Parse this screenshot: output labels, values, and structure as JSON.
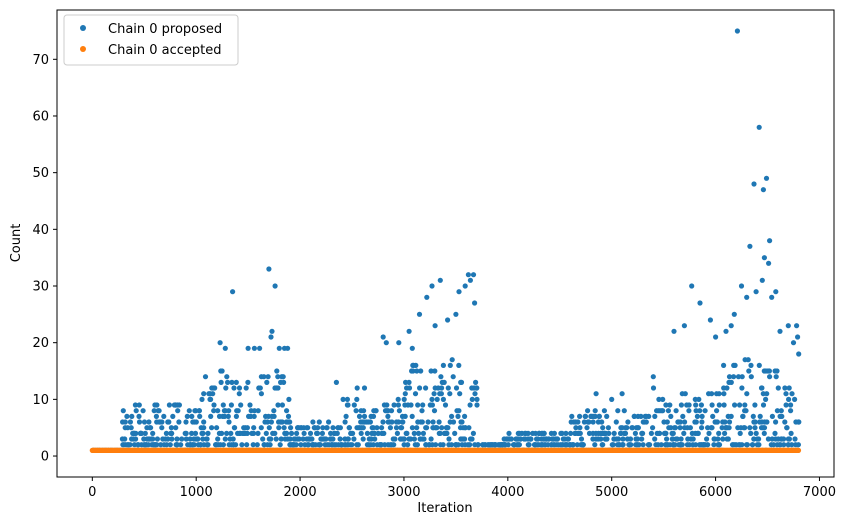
{
  "chart_data": {
    "type": "scatter",
    "title": "",
    "xlabel": "Iteration",
    "ylabel": "Count",
    "xlim": [
      -340,
      7140
    ],
    "ylim": [
      -3.7,
      78.7
    ],
    "xticks": [
      0,
      1000,
      2000,
      3000,
      4000,
      5000,
      6000,
      7000
    ],
    "yticks": [
      0,
      10,
      20,
      30,
      40,
      50,
      60,
      70
    ],
    "grid": false,
    "legend_position": "top-left",
    "colors": {
      "proposed": "#1f77b4",
      "accepted": "#ff7f0e"
    },
    "series": [
      {
        "name": "Chain 0 proposed",
        "color": "#1f77b4",
        "marker": "dot",
        "segments": [
          {
            "x_range": [
              0,
              290
            ],
            "y_max": 1
          },
          {
            "x_range": [
              290,
              1000
            ],
            "y_max": 9
          },
          {
            "x_range": [
              1000,
              1900
            ],
            "y_max": 15
          },
          {
            "x_range": [
              1900,
              2400
            ],
            "y_max": 6
          },
          {
            "x_range": [
              2400,
              3000
            ],
            "y_max": 10
          },
          {
            "x_range": [
              3000,
              3700
            ],
            "y_max": 17
          },
          {
            "x_range": [
              3700,
              3950
            ],
            "y_max": 2
          },
          {
            "x_range": [
              3950,
              4600
            ],
            "y_max": 4
          },
          {
            "x_range": [
              4600,
              5400
            ],
            "y_max": 8
          },
          {
            "x_range": [
              5400,
              6000
            ],
            "y_max": 12
          },
          {
            "x_range": [
              6000,
              6800
            ],
            "y_max": 17
          }
        ],
        "notable_points": [
          [
            290,
            3
          ],
          [
            1230,
            20
          ],
          [
            1280,
            19
          ],
          [
            1350,
            29
          ],
          [
            1500,
            19
          ],
          [
            1560,
            19
          ],
          [
            1610,
            19
          ],
          [
            1700,
            33
          ],
          [
            1720,
            21
          ],
          [
            1730,
            22
          ],
          [
            1760,
            30
          ],
          [
            1800,
            19
          ],
          [
            1850,
            19
          ],
          [
            1880,
            19
          ],
          [
            2350,
            13
          ],
          [
            2550,
            12
          ],
          [
            2620,
            12
          ],
          [
            2800,
            21
          ],
          [
            2830,
            20
          ],
          [
            2950,
            20
          ],
          [
            3050,
            22
          ],
          [
            3080,
            19
          ],
          [
            3150,
            25
          ],
          [
            3220,
            28
          ],
          [
            3270,
            30
          ],
          [
            3300,
            23
          ],
          [
            3350,
            31
          ],
          [
            3420,
            24
          ],
          [
            3500,
            25
          ],
          [
            3530,
            29
          ],
          [
            3590,
            30
          ],
          [
            3620,
            32
          ],
          [
            3640,
            31
          ],
          [
            3670,
            32
          ],
          [
            3680,
            27
          ],
          [
            3880,
            2
          ],
          [
            4850,
            11
          ],
          [
            5000,
            10
          ],
          [
            5100,
            11
          ],
          [
            5400,
            14
          ],
          [
            5600,
            22
          ],
          [
            5700,
            23
          ],
          [
            5770,
            30
          ],
          [
            5850,
            27
          ],
          [
            5950,
            24
          ],
          [
            6000,
            21
          ],
          [
            6100,
            22
          ],
          [
            6150,
            23
          ],
          [
            6180,
            25
          ],
          [
            6210,
            75
          ],
          [
            6250,
            30
          ],
          [
            6300,
            28
          ],
          [
            6330,
            37
          ],
          [
            6370,
            48
          ],
          [
            6390,
            29
          ],
          [
            6420,
            58
          ],
          [
            6450,
            31
          ],
          [
            6460,
            47
          ],
          [
            6470,
            35
          ],
          [
            6490,
            49
          ],
          [
            6510,
            34
          ],
          [
            6520,
            38
          ],
          [
            6540,
            28
          ],
          [
            6580,
            29
          ],
          [
            6620,
            22
          ],
          [
            6700,
            23
          ],
          [
            6750,
            20
          ],
          [
            6780,
            23
          ],
          [
            6790,
            21
          ],
          [
            6800,
            18
          ]
        ]
      },
      {
        "name": "Chain 0 accepted",
        "color": "#ff7f0e",
        "marker": "dot",
        "x_range": [
          0,
          6800
        ],
        "constant_y": 1
      }
    ]
  }
}
